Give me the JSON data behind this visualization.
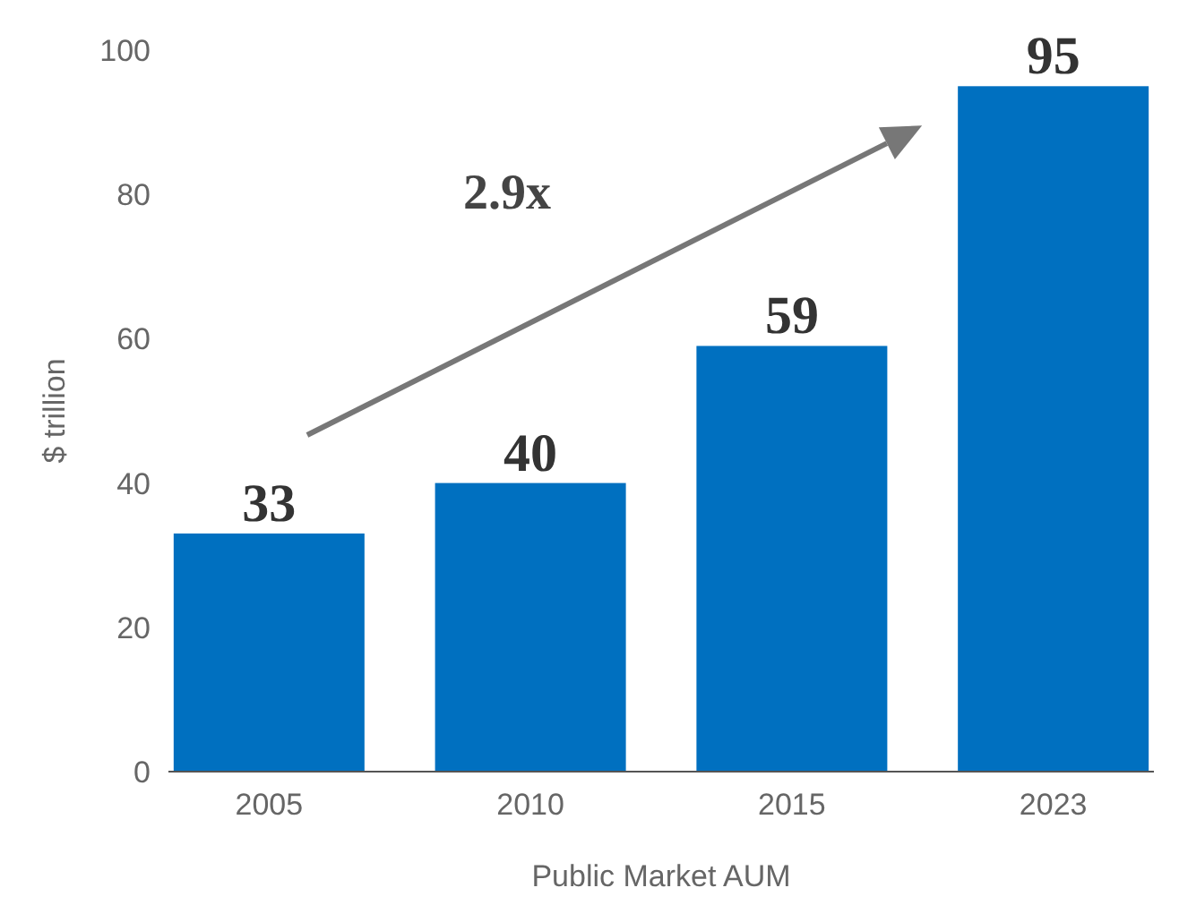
{
  "chart_data": {
    "type": "bar",
    "xlabel": "Public Market AUM",
    "ylabel": "$ trillion",
    "categories": [
      "2005",
      "2010",
      "2015",
      "2023"
    ],
    "values": [
      33,
      40,
      59,
      95
    ],
    "color": "#0070c0",
    "ylim": [
      0,
      100
    ],
    "yticks": [
      0,
      20,
      40,
      60,
      80,
      100
    ],
    "grid": false,
    "data_labels": true,
    "annotations": [
      "2.9x"
    ]
  }
}
